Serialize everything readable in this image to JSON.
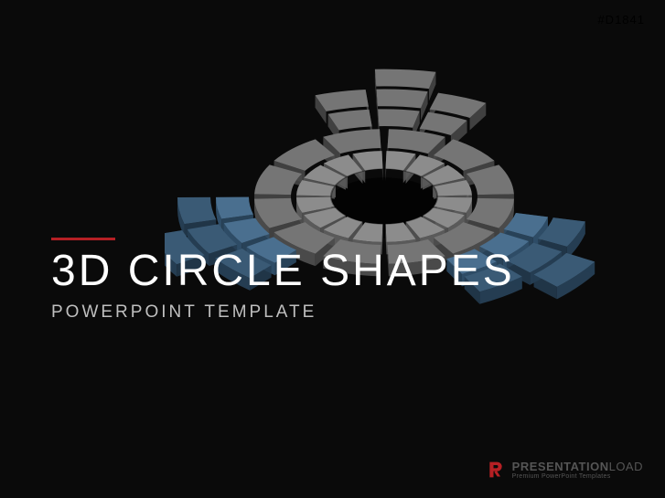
{
  "meta": {
    "id_tag": "#D1841",
    "id_color": "#6a6a6a"
  },
  "title": {
    "accent_color": "#b62024",
    "main": "3D CIRCLE SHAPES",
    "main_color": "#ffffff",
    "subtitle": "POWERPOINT TEMPLATE",
    "subtitle_color": "#bfbfbf"
  },
  "brand": {
    "name_bold": "PRESENTATION",
    "name_light": "LOAD",
    "tagline": "Premium PowerPoint Templates",
    "icon_color": "#b62024",
    "text_color": "#555555"
  },
  "shape": {
    "blue_top": "#4a6f8f",
    "blue_side": "#2e4c66",
    "blue_dark_top": "#3a5a75",
    "blue_dark_side": "#253d52",
    "gray_top": "#8c8c8c",
    "gray_side": "#5a5a5a",
    "gray_dark_top": "#757575",
    "gray_dark_side": "#4a4a4a",
    "background": "#0a0a0a",
    "inner_shadow": "#000000",
    "watermark_color": "#ffffff"
  }
}
